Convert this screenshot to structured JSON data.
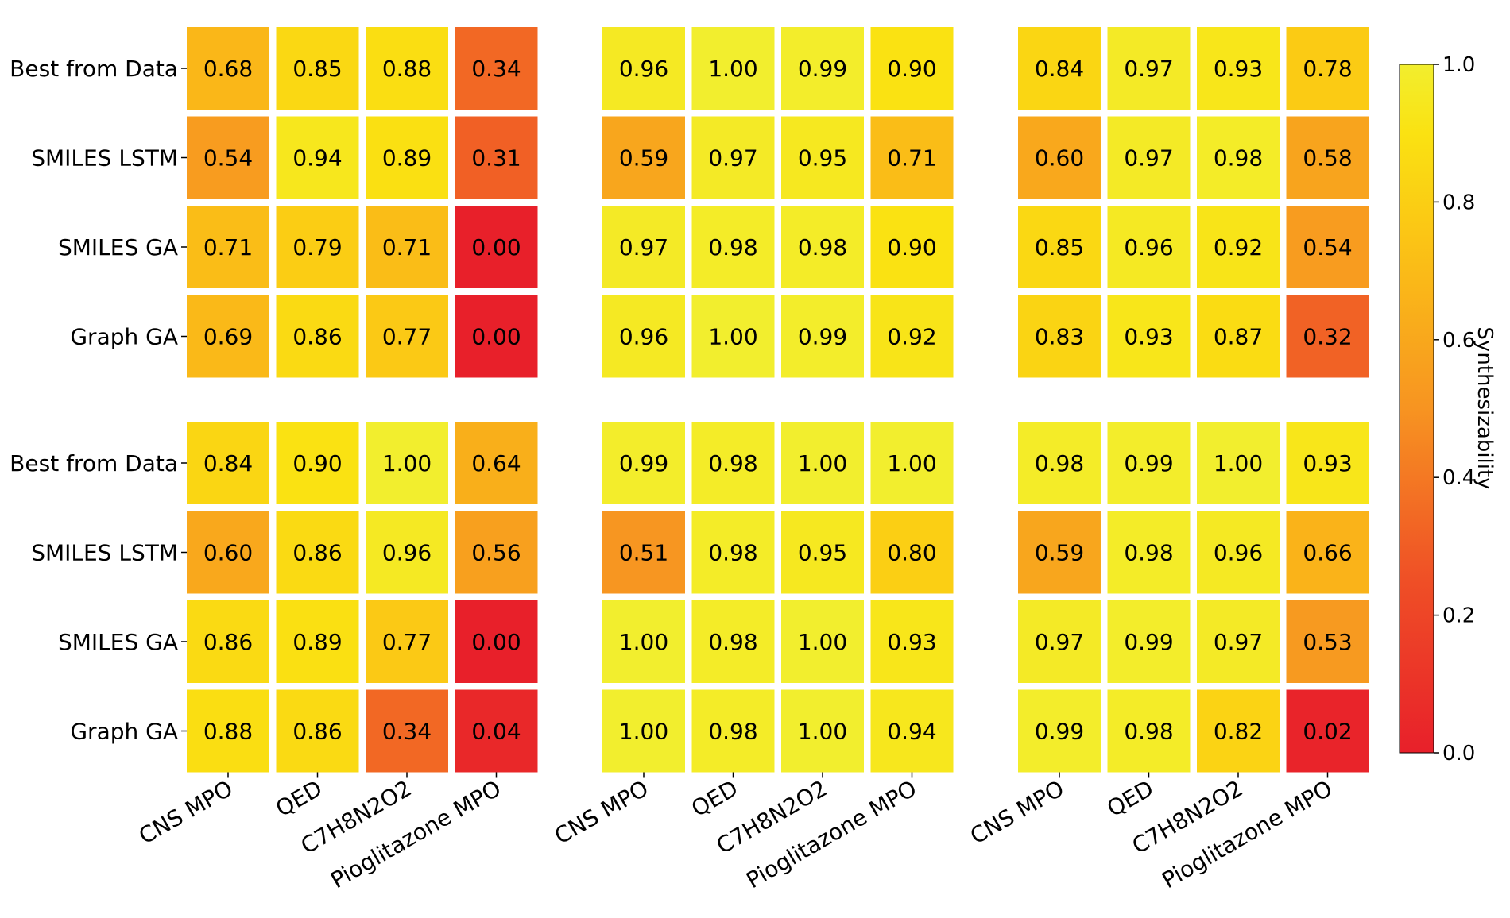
{
  "chart_data": {
    "type": "heatmap",
    "title": "",
    "rows": [
      "Best from Data",
      "SMILES LSTM",
      "SMILES GA",
      "Graph GA"
    ],
    "columns": [
      "CNS MPO",
      "QED",
      "C7H8N2O2",
      "Pioglitazone MPO"
    ],
    "panels": [
      {
        "values": [
          [
            0.68,
            0.85,
            0.88,
            0.34
          ],
          [
            0.54,
            0.94,
            0.89,
            0.31
          ],
          [
            0.71,
            0.79,
            0.71,
            0.0
          ],
          [
            0.69,
            0.86,
            0.77,
            0.0
          ]
        ]
      },
      {
        "values": [
          [
            0.96,
            1.0,
            0.99,
            0.9
          ],
          [
            0.59,
            0.97,
            0.95,
            0.71
          ],
          [
            0.97,
            0.98,
            0.98,
            0.9
          ],
          [
            0.96,
            1.0,
            0.99,
            0.92
          ]
        ]
      },
      {
        "values": [
          [
            0.84,
            0.97,
            0.93,
            0.78
          ],
          [
            0.6,
            0.97,
            0.98,
            0.58
          ],
          [
            0.85,
            0.96,
            0.92,
            0.54
          ],
          [
            0.83,
            0.93,
            0.87,
            0.32
          ]
        ]
      },
      {
        "values": [
          [
            0.84,
            0.9,
            1.0,
            0.64
          ],
          [
            0.6,
            0.86,
            0.96,
            0.56
          ],
          [
            0.86,
            0.89,
            0.77,
            0.0
          ],
          [
            0.88,
            0.86,
            0.34,
            0.04
          ]
        ]
      },
      {
        "values": [
          [
            0.99,
            0.98,
            1.0,
            1.0
          ],
          [
            0.51,
            0.98,
            0.95,
            0.8
          ],
          [
            1.0,
            0.98,
            1.0,
            0.93
          ],
          [
            1.0,
            0.98,
            1.0,
            0.94
          ]
        ]
      },
      {
        "values": [
          [
            0.98,
            0.99,
            1.0,
            0.93
          ],
          [
            0.59,
            0.98,
            0.96,
            0.66
          ],
          [
            0.97,
            0.99,
            0.97,
            0.53
          ],
          [
            0.99,
            0.98,
            0.82,
            0.02
          ]
        ]
      }
    ],
    "colorbar": {
      "label": "Synthesizability",
      "range": [
        0.0,
        1.0
      ],
      "ticks": [
        "0.0",
        "0.2",
        "0.4",
        "0.6",
        "0.8",
        "1.0"
      ],
      "colormap": "autumn",
      "low_color": "#e8202a",
      "high_color": "#f2ee2e"
    }
  }
}
